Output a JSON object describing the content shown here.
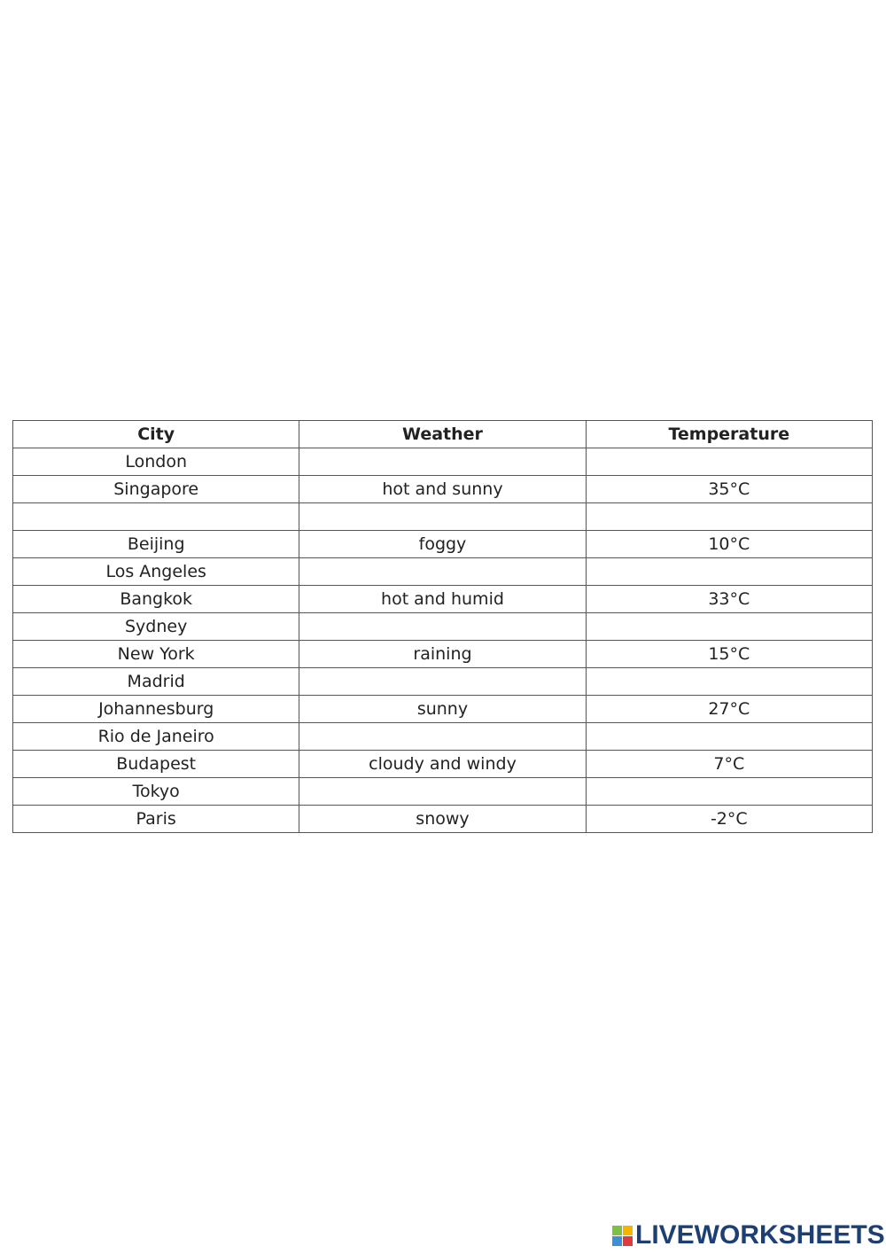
{
  "table": {
    "headers": [
      "City",
      "Weather",
      "Temperature"
    ],
    "rows": [
      [
        "London",
        "",
        ""
      ],
      [
        "Singapore",
        "hot and sunny",
        "35°C"
      ],
      [
        "",
        "",
        ""
      ],
      [
        "Beijing",
        "foggy",
        "10°C"
      ],
      [
        "Los Angeles",
        "",
        ""
      ],
      [
        "Bangkok",
        "hot and humid",
        "33°C"
      ],
      [
        "Sydney",
        "",
        ""
      ],
      [
        "New York",
        "raining",
        "15°C"
      ],
      [
        "Madrid",
        "",
        ""
      ],
      [
        "Johannesburg",
        "sunny",
        "27°C"
      ],
      [
        "Rio de Janeiro",
        "",
        ""
      ],
      [
        "Budapest",
        "cloudy and windy",
        "7°C"
      ],
      [
        "Tokyo",
        "",
        ""
      ],
      [
        "Paris",
        "snowy",
        "-2°C"
      ]
    ]
  },
  "logo": {
    "text": "LIVEWORKSHEETS",
    "blocks": [
      "L",
      "I",
      "V",
      "E"
    ],
    "colors": [
      "#7cc142",
      "#f5b400",
      "#3d8fd6",
      "#e0393e"
    ],
    "brand_color": "#1e3f73"
  }
}
